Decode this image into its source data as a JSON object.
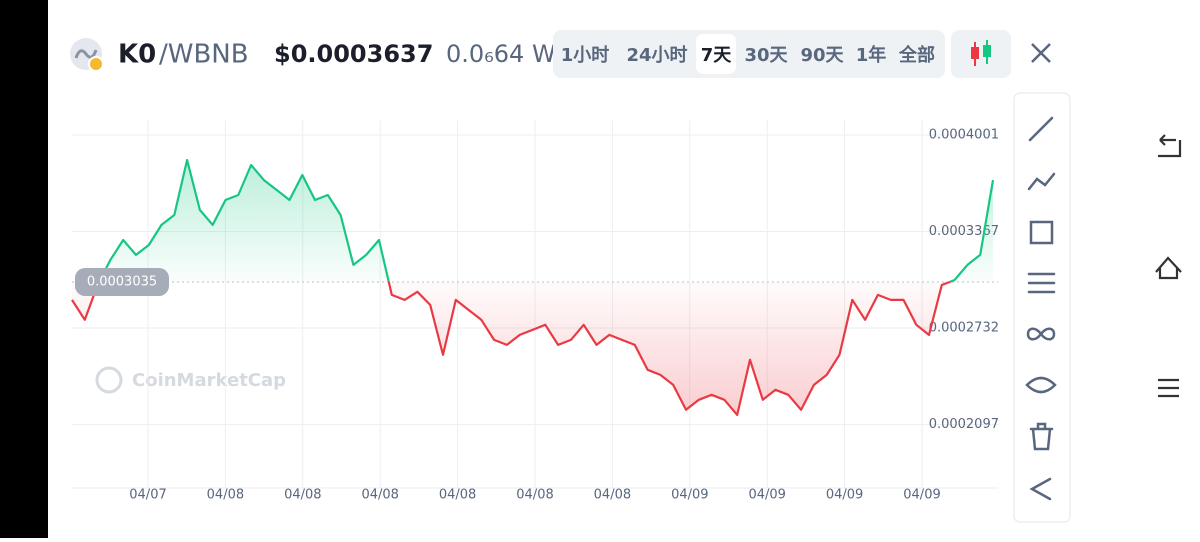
{
  "header": {
    "pair_base": "K0",
    "pair_quote": "/WBNB",
    "price": "$0.0003637",
    "change": "0.0₆64 W",
    "time_ranges": [
      "1小时",
      "24小时",
      "7天",
      "30天",
      "90天",
      "1年",
      "全部"
    ],
    "selected": 2
  },
  "chart_data": {
    "type": "line",
    "watermark": "CoinMarketCap",
    "values": [
      0.0002917,
      0.0002786,
      0.0003015,
      0.000318,
      0.0003311,
      0.0003213,
      0.0003278,
      0.000341,
      0.0003475,
      0.0003837,
      0.0003508,
      0.000341,
      0.0003574,
      0.0003607,
      0.0003804,
      0.0003705,
      0.000364,
      0.0003574,
      0.0003738,
      0.0003574,
      0.0003607,
      0.0003475,
      0.0003147,
      0.0003213,
      0.0003311,
      0.000295,
      0.0002917,
      0.000297,
      0.0002884,
      0.0002556,
      0.0002917,
      0.0002851,
      0.0002786,
      0.0002654,
      0.0002621,
      0.0002687,
      0.000272,
      0.0002753,
      0.0002621,
      0.0002654,
      0.0002753,
      0.0002621,
      0.0002687,
      0.0002654,
      0.0002621,
      0.0002457,
      0.0002424,
      0.0002358,
      0.0002194,
      0.000226,
      0.0002293,
      0.000226,
      0.0002161,
      0.0002523,
      0.000226,
      0.0002326,
      0.0002293,
      0.0002194,
      0.0002358,
      0.0002424,
      0.0002556,
      0.0002917,
      0.0002786,
      0.000295,
      0.0002917,
      0.0002917,
      0.0002753,
      0.0002687,
      0.0003015,
      0.0003048,
      0.0003147,
      0.0003213,
      0.0003705
    ],
    "baseline": 0.0003035,
    "ylim": [
      0.000168,
      0.00041
    ],
    "yticks": [
      0.0004001,
      0.0003367,
      0.0002732,
      0.0002097
    ],
    "xtick_labels": [
      "04/07",
      "04/08",
      "04/08",
      "04/08",
      "04/08",
      "04/08",
      "04/08",
      "04/09",
      "04/09",
      "04/09",
      "04/09"
    ],
    "up_color": "#16c784",
    "down_color": "#ea3943",
    "grid": true
  }
}
